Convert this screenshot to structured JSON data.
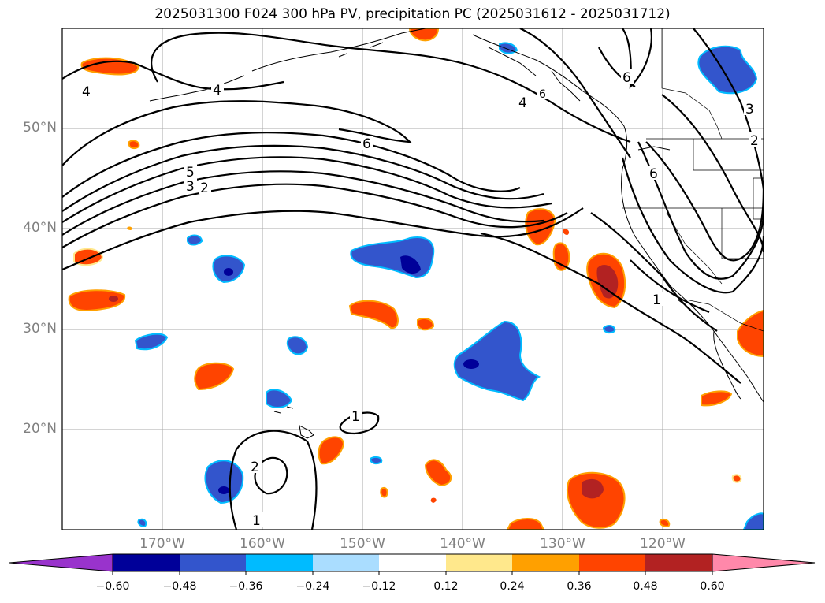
{
  "title": "2025031300 F024 300 hPa PV, precipitation PC (2025031612 - 2025031712)",
  "axes": {
    "lat_labels": [
      "50°N",
      "40°N",
      "30°N",
      "20°N"
    ],
    "lon_labels": [
      "170°W",
      "160°W",
      "150°W",
      "140°W",
      "130°W",
      "120°W"
    ]
  },
  "contour_labels": [
    "4",
    "4",
    "4",
    "6",
    "6",
    "6",
    "5",
    "3",
    "2",
    "3",
    "2",
    "1",
    "1",
    "2",
    "1"
  ],
  "colorbar": {
    "tick_labels": [
      "−0.60",
      "−0.48",
      "−0.36",
      "−0.24",
      "−0.12",
      "0.12",
      "0.24",
      "0.36",
      "0.48",
      "0.60"
    ],
    "colors": [
      "#9933cc",
      "#000099",
      "#3355cc",
      "#00bbff",
      "#aaddff",
      "#ffffff",
      "#ffe88c",
      "#ffa000",
      "#ff4400",
      "#b22222",
      "#ff88aa"
    ]
  },
  "colors": {
    "grid": "#a9a9a9",
    "contour": "#000000",
    "coast": "#000000"
  }
}
